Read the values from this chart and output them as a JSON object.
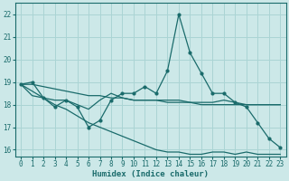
{
  "xlabel": "Humidex (Indice chaleur)",
  "background_color": "#cce8e8",
  "grid_color": "#aad4d4",
  "line_color": "#1a6b6b",
  "xlim": [
    -0.5,
    23.5
  ],
  "ylim": [
    15.7,
    22.5
  ],
  "yticks": [
    16,
    17,
    18,
    19,
    20,
    21,
    22
  ],
  "xticks": [
    0,
    1,
    2,
    3,
    4,
    5,
    6,
    7,
    8,
    9,
    10,
    11,
    12,
    13,
    14,
    15,
    16,
    17,
    18,
    19,
    20,
    21,
    22,
    23
  ],
  "line_flat_x": [
    0,
    1,
    2,
    3,
    4,
    5,
    6,
    7,
    8,
    9,
    10,
    11,
    12,
    13,
    14,
    15,
    16,
    17,
    18,
    19,
    20,
    21,
    22,
    23
  ],
  "line_flat_y": [
    18.9,
    18.9,
    18.8,
    18.7,
    18.6,
    18.5,
    18.4,
    18.4,
    18.3,
    18.3,
    18.2,
    18.2,
    18.2,
    18.1,
    18.1,
    18.1,
    18.0,
    18.0,
    18.0,
    18.0,
    18.0,
    18.0,
    18.0,
    18.0
  ],
  "line_diag_x": [
    0,
    1,
    2,
    3,
    4,
    5,
    6,
    7,
    8,
    9,
    10,
    11,
    12,
    13,
    14,
    15,
    16,
    17,
    18,
    19,
    20,
    21,
    22,
    23
  ],
  "line_diag_y": [
    18.9,
    18.6,
    18.3,
    18.0,
    17.8,
    17.5,
    17.2,
    17.0,
    16.8,
    16.6,
    16.4,
    16.2,
    16.0,
    15.9,
    15.9,
    15.8,
    15.8,
    15.9,
    15.9,
    15.8,
    15.9,
    15.8,
    15.8,
    15.8
  ],
  "line_peak_x": [
    0,
    1,
    2,
    3,
    4,
    5,
    6,
    7,
    8,
    9,
    10,
    11,
    12,
    13,
    14,
    15,
    16,
    17,
    18,
    19,
    20,
    21,
    22,
    23
  ],
  "line_peak_y": [
    18.9,
    19.0,
    18.3,
    17.9,
    18.2,
    17.9,
    17.0,
    17.3,
    18.2,
    18.5,
    18.5,
    18.8,
    18.5,
    19.5,
    22.0,
    20.3,
    19.4,
    18.5,
    18.5,
    18.1,
    17.9,
    17.2,
    16.5,
    16.1
  ],
  "line_mid_x": [
    0,
    1,
    2,
    3,
    4,
    5,
    6,
    7,
    8,
    9,
    10,
    11,
    12,
    13,
    14,
    15,
    16,
    17,
    18,
    19,
    20,
    21,
    22,
    23
  ],
  "line_mid_y": [
    18.9,
    18.4,
    18.3,
    18.2,
    18.2,
    18.0,
    17.8,
    18.2,
    18.5,
    18.3,
    18.2,
    18.2,
    18.2,
    18.2,
    18.2,
    18.1,
    18.1,
    18.1,
    18.2,
    18.1,
    18.0,
    18.0,
    18.0,
    18.0
  ]
}
